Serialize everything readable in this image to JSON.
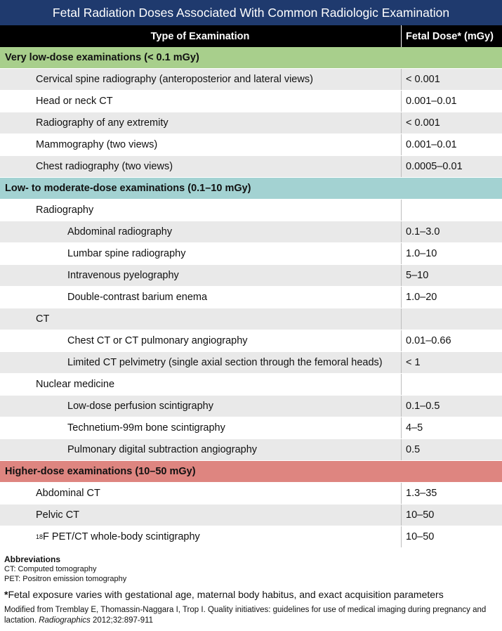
{
  "title": "Fetal Radiation Doses Associated With Common Radiologic Examination",
  "headers": {
    "exam": "Type of Examination",
    "dose": "Fetal Dose* (mGy)"
  },
  "rows": [
    {
      "kind": "section",
      "color": "green",
      "name": "Very low-dose examinations (< 0.1 mGy)",
      "dose": ""
    },
    {
      "kind": "item",
      "level": 1,
      "bg": "grey",
      "name": "Cervical spine radiography (anteroposterior and lateral views)",
      "dose": "< 0.001"
    },
    {
      "kind": "item",
      "level": 1,
      "bg": "white",
      "name": "Head or neck CT",
      "dose": "0.001–0.01"
    },
    {
      "kind": "item",
      "level": 1,
      "bg": "grey",
      "name": "Radiography of any extremity",
      "dose": "< 0.001"
    },
    {
      "kind": "item",
      "level": 1,
      "bg": "white",
      "name": "Mammography (two views)",
      "dose": "0.001–0.01"
    },
    {
      "kind": "item",
      "level": 1,
      "bg": "grey",
      "name": "Chest radiography (two views)",
      "dose": "0.0005–0.01"
    },
    {
      "kind": "section",
      "color": "teal",
      "name": "Low- to moderate-dose examinations (0.1–10 mGy)",
      "dose": ""
    },
    {
      "kind": "item",
      "level": 1,
      "bg": "white",
      "name": "Radiography",
      "dose": ""
    },
    {
      "kind": "item",
      "level": 2,
      "bg": "grey",
      "name": "Abdominal radiography",
      "dose": "0.1–3.0"
    },
    {
      "kind": "item",
      "level": 2,
      "bg": "white",
      "name": "Lumbar spine radiography",
      "dose": "1.0–10"
    },
    {
      "kind": "item",
      "level": 2,
      "bg": "grey",
      "name": "Intravenous pyelography",
      "dose": "5–10"
    },
    {
      "kind": "item",
      "level": 2,
      "bg": "white",
      "name": "Double-contrast barium enema",
      "dose": "1.0–20"
    },
    {
      "kind": "item",
      "level": 1,
      "bg": "grey",
      "name": "CT",
      "dose": ""
    },
    {
      "kind": "item",
      "level": 2,
      "bg": "white",
      "name": "Chest CT or CT pulmonary angiography",
      "dose": "0.01–0.66"
    },
    {
      "kind": "item",
      "level": 2,
      "bg": "grey",
      "name": "Limited CT pelvimetry (single axial section through the femoral heads)",
      "dose": "< 1"
    },
    {
      "kind": "item",
      "level": 1,
      "bg": "white",
      "name": "Nuclear medicine",
      "dose": ""
    },
    {
      "kind": "item",
      "level": 2,
      "bg": "grey",
      "name": "Low-dose perfusion scintigraphy",
      "dose": "0.1–0.5"
    },
    {
      "kind": "item",
      "level": 2,
      "bg": "white",
      "name": "Technetium-99m bone scintigraphy",
      "dose": "4–5"
    },
    {
      "kind": "item",
      "level": 2,
      "bg": "grey",
      "name": "Pulmonary digital subtraction angiography",
      "dose": "0.5"
    },
    {
      "kind": "section",
      "color": "red",
      "name": "Higher-dose examinations (10–50 mGy)",
      "dose": ""
    },
    {
      "kind": "item",
      "level": 1,
      "bg": "white",
      "name": "Abdominal CT",
      "dose": "1.3–35"
    },
    {
      "kind": "item",
      "level": 1,
      "bg": "grey",
      "name": "Pelvic CT",
      "dose": "10–50"
    },
    {
      "kind": "item",
      "level": 1,
      "bg": "white",
      "sup": "18",
      "name": "F PET/CT whole-body scintigraphy",
      "dose": "10–50"
    }
  ],
  "abbreviations": {
    "title": "Abbreviations",
    "items": [
      "CT: Computed tomography",
      "PET: Positron emission tomography"
    ]
  },
  "footnote": {
    "marker": "*",
    "text": "Fetal exposure varies with gestational age, maternal body habitus, and exact acquisition parameters"
  },
  "source": {
    "prefix": "Modified from Tremblay E, Thomassin-Naggara I, Trop I. Quality initiatives: guidelines for use of medical imaging during pregnancy and lactation.",
    "journal": "Radiographics",
    "suffix": "2012;32:897-911"
  },
  "colors": {
    "title_bg": "#1f3a6e",
    "header_bg": "#000000",
    "section_green": "#a8cf8c",
    "section_teal": "#a3d2d2",
    "section_red": "#de8580",
    "row_grey": "#e9e9e9"
  }
}
